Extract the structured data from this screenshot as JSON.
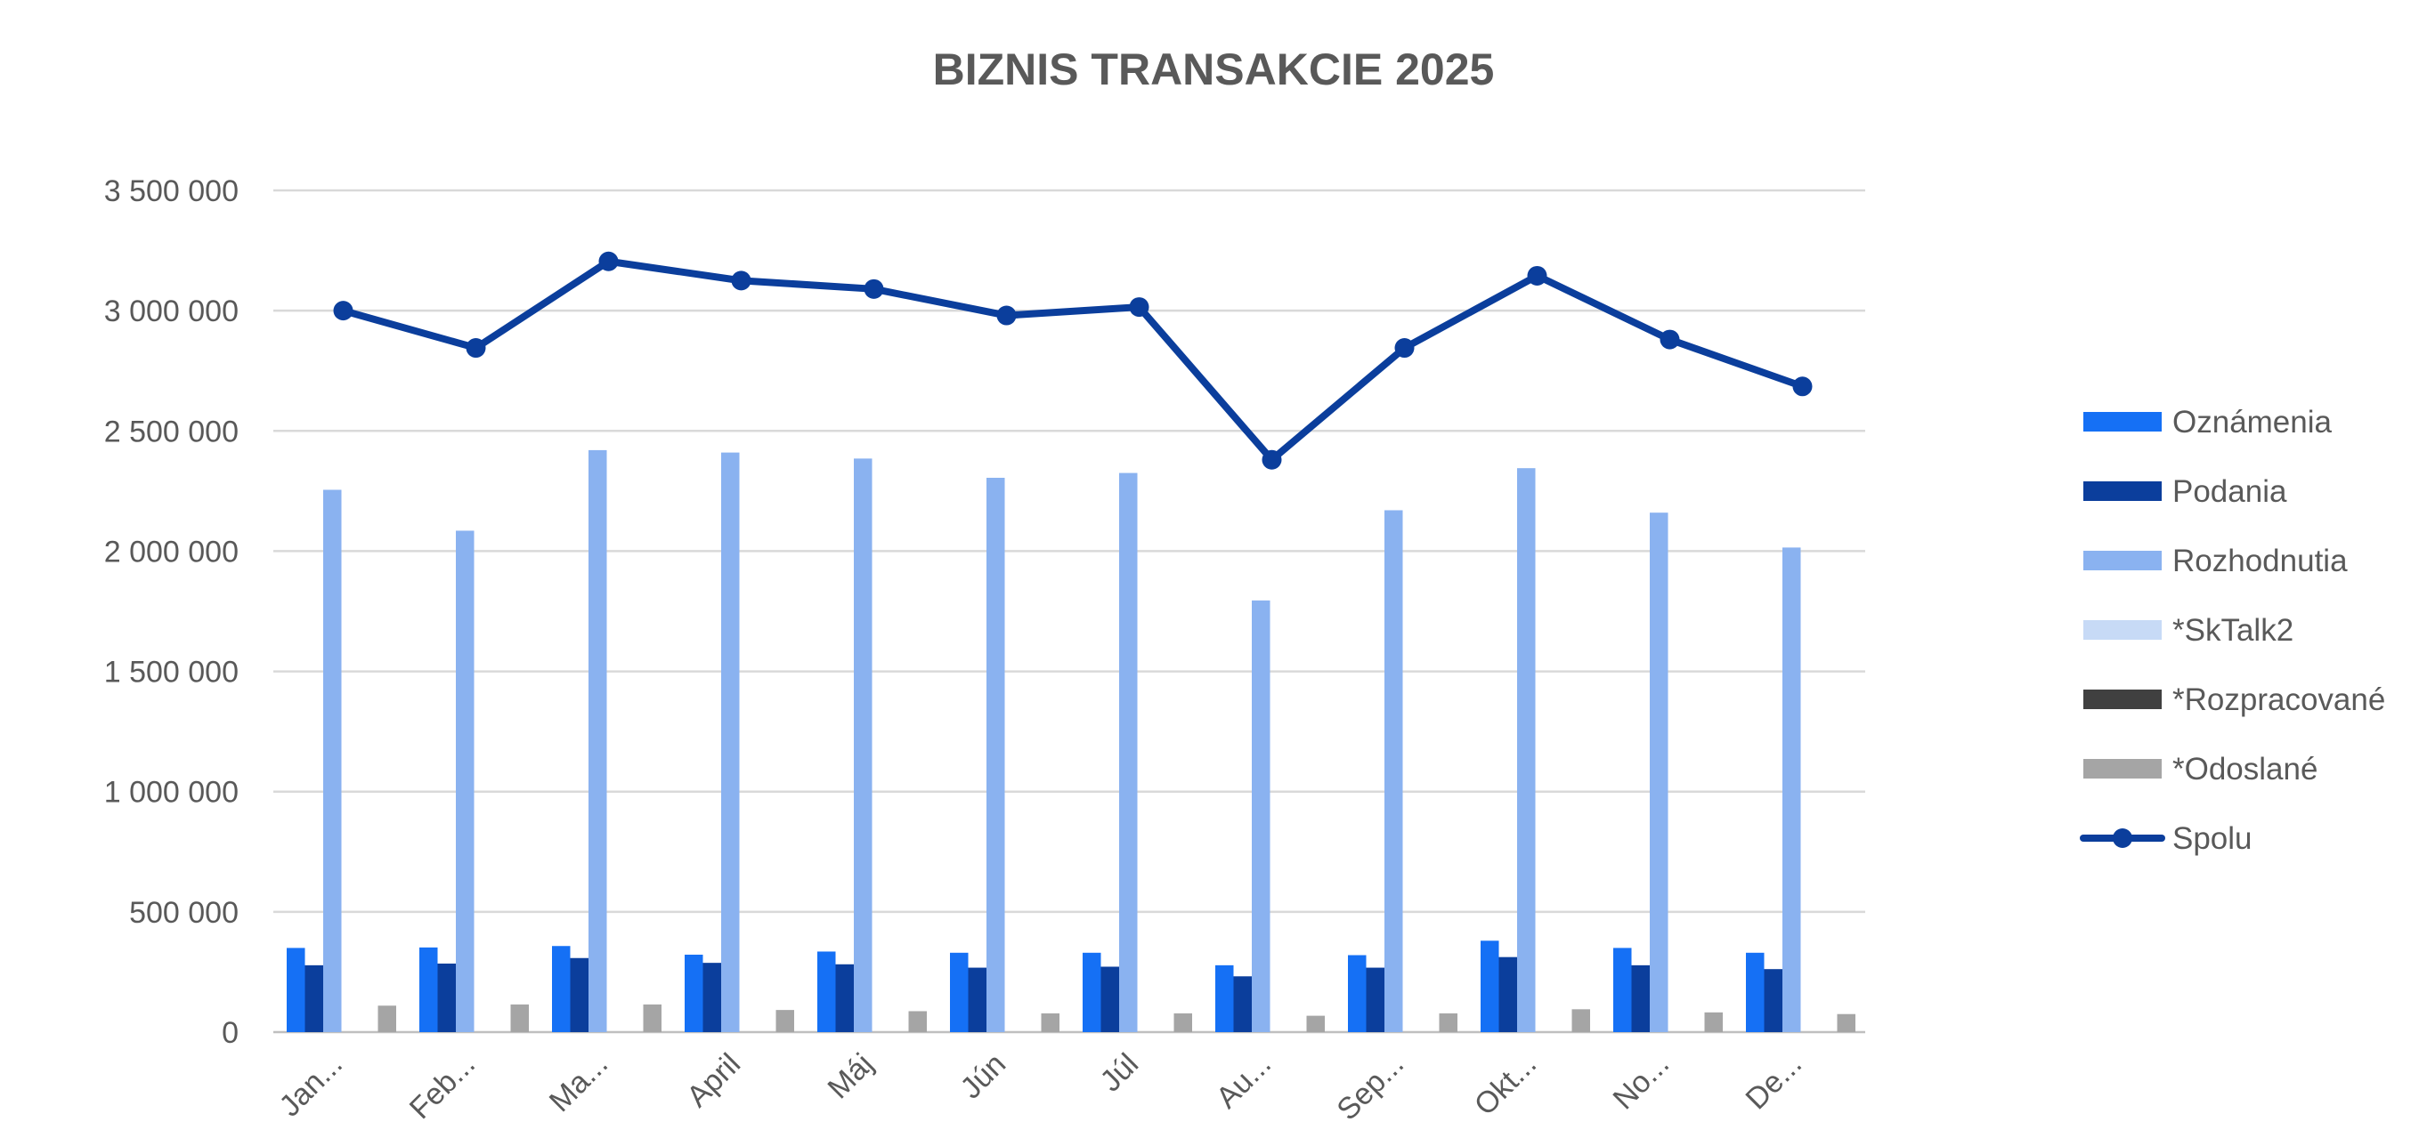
{
  "chart_data": {
    "type": "bar",
    "title": "BIZNIS TRANSAKCIE 2025",
    "xlabel": "",
    "ylabel": "",
    "categories": [
      "Jan...",
      "Feb...",
      "Ma...",
      "April",
      "Máj",
      "Jún",
      "Júl",
      "Au...",
      "Sep...",
      "Okt...",
      "No...",
      "De..."
    ],
    "y_ticks": [
      "0",
      "500 000",
      "1 000 000",
      "1 500 000",
      "2 000 000",
      "2 500 000",
      "3 000 000",
      "3 500 000"
    ],
    "ylim": [
      0,
      3500000
    ],
    "grid": true,
    "legend_position": "right",
    "series": [
      {
        "name": "Oznámenia",
        "type": "bar",
        "color": "#1570F5",
        "values": [
          350000,
          352000,
          358000,
          322000,
          335000,
          330000,
          330000,
          278000,
          320000,
          380000,
          350000,
          330000
        ]
      },
      {
        "name": "Podania",
        "type": "bar",
        "color": "#0B3E9C",
        "values": [
          278000,
          285000,
          308000,
          288000,
          282000,
          268000,
          272000,
          232000,
          268000,
          312000,
          278000,
          262000
        ]
      },
      {
        "name": "Rozhodnutia",
        "type": "bar",
        "color": "#8AB2F0",
        "values": [
          2255000,
          2085000,
          2420000,
          2410000,
          2385000,
          2305000,
          2325000,
          1795000,
          2170000,
          2345000,
          2160000,
          2015000
        ]
      },
      {
        "name": "*SkTalk2",
        "type": "bar",
        "color": "#C7DAF6",
        "values": [
          0,
          0,
          0,
          0,
          0,
          0,
          0,
          0,
          0,
          0,
          0,
          0
        ]
      },
      {
        "name": "*Rozpracované",
        "type": "bar",
        "color": "#404040",
        "values": [
          0,
          0,
          0,
          0,
          0,
          0,
          0,
          0,
          0,
          0,
          0,
          0
        ]
      },
      {
        "name": "*Odoslané",
        "type": "bar",
        "color": "#A5A5A5",
        "values": [
          110000,
          115000,
          115000,
          92000,
          87000,
          78000,
          78000,
          68000,
          78000,
          95000,
          82000,
          75000
        ]
      },
      {
        "name": "Spolu",
        "type": "line",
        "color": "#0B3E9C",
        "values": [
          3000000,
          2845000,
          3205000,
          3125000,
          3090000,
          2980000,
          3015000,
          2380000,
          2845000,
          3145000,
          2880000,
          2685000
        ]
      }
    ]
  }
}
